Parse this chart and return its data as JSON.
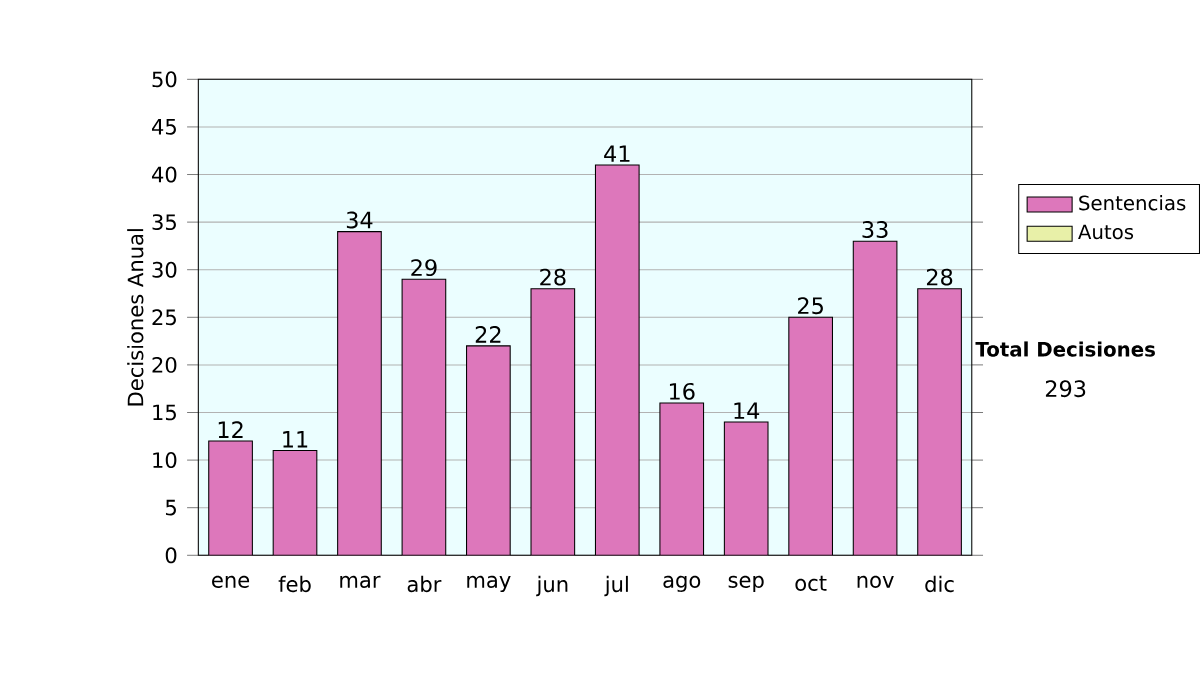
{
  "chart_data": {
    "type": "bar",
    "ylabel": "Decisiones Anual",
    "categories": [
      "ene",
      "feb",
      "mar",
      "abr",
      "may",
      "jun",
      "jul",
      "ago",
      "sep",
      "oct",
      "nov",
      "dic"
    ],
    "series": [
      {
        "name": "Sentencias",
        "color": "#dd77bb",
        "values": [
          12,
          11,
          34,
          29,
          22,
          28,
          41,
          16,
          14,
          25,
          33,
          28
        ]
      },
      {
        "name": "Autos",
        "color": "#e8f0a8",
        "values": [
          null,
          null,
          null,
          null,
          null,
          null,
          null,
          null,
          null,
          null,
          null,
          null
        ]
      }
    ],
    "ylim": [
      0,
      50
    ],
    "yticks": [
      0,
      5,
      10,
      15,
      20,
      25,
      30,
      35,
      40,
      45,
      50
    ],
    "grid": "y",
    "legend": "right",
    "data_labels": true,
    "annotations": [
      "Total Decisiones",
      "293"
    ]
  }
}
